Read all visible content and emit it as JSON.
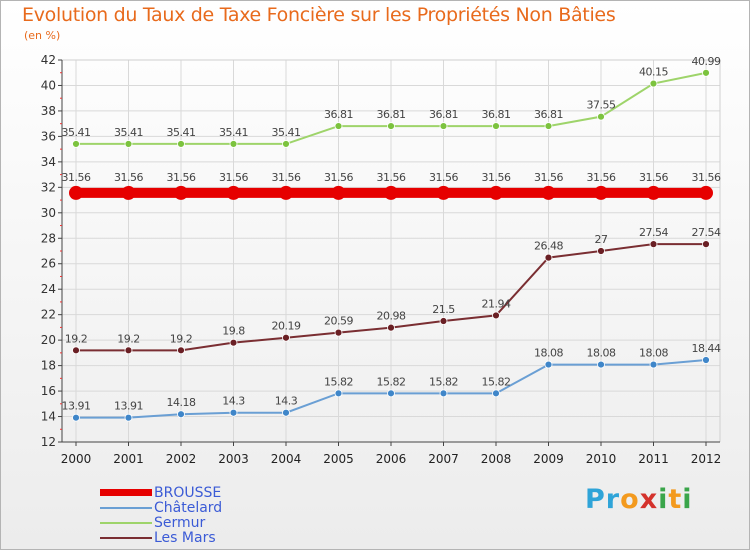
{
  "title": "Evolution du Taux de Taxe Foncière sur les Propriétés Non Bâties",
  "unit_label": "(en %)",
  "logo": {
    "letters": [
      "P",
      "r",
      "o",
      "x",
      "i",
      "t",
      "i"
    ],
    "colors": [
      "#2fa4d8",
      "#2fa4d8",
      "#f39a1e",
      "#d4322c",
      "#3aa54a",
      "#f39a1e",
      "#3aa54a"
    ]
  },
  "chart_data": {
    "type": "line",
    "x": [
      "2000",
      "2001",
      "2002",
      "2003",
      "2004",
      "2005",
      "2006",
      "2007",
      "2008",
      "2009",
      "2010",
      "2011",
      "2012"
    ],
    "ylim": [
      12,
      42
    ],
    "yticks": [
      12,
      14,
      16,
      18,
      20,
      22,
      24,
      26,
      28,
      30,
      32,
      34,
      36,
      38,
      40,
      42
    ],
    "grid": true,
    "legend_position": "bottom-left",
    "series": [
      {
        "name": "BROUSSE",
        "color": "#e60000",
        "emphasis": true,
        "values": [
          31.56,
          31.56,
          31.56,
          31.56,
          31.56,
          31.56,
          31.56,
          31.56,
          31.56,
          31.56,
          31.56,
          31.56,
          31.56
        ],
        "labels": [
          "31.56",
          "31.56",
          "31.56",
          "31.56",
          "31.56",
          "31.56",
          "31.56",
          "31.56",
          "31.56",
          "31.56",
          "31.56",
          "31.56",
          "31.56"
        ]
      },
      {
        "name": "Châtelard",
        "color": "#6a9fd4",
        "point": "#3f86c9",
        "values": [
          13.91,
          13.91,
          14.18,
          14.3,
          14.3,
          15.82,
          15.82,
          15.82,
          15.82,
          18.08,
          18.08,
          18.08,
          18.44
        ],
        "labels": [
          "13.91",
          "13.91",
          "14.18",
          "14.3",
          "14.3",
          "15.82",
          "15.82",
          "15.82",
          "15.82",
          "18.08",
          "18.08",
          "18.08",
          "18.44"
        ]
      },
      {
        "name": "Sermur",
        "color": "#9ed46a",
        "point": "#7cc33e",
        "values": [
          35.41,
          35.41,
          35.41,
          35.41,
          35.41,
          36.81,
          36.81,
          36.81,
          36.81,
          36.81,
          37.55,
          40.15,
          40.99
        ],
        "labels": [
          "35.41",
          "35.41",
          "35.41",
          "35.41",
          "35.41",
          "36.81",
          "36.81",
          "36.81",
          "36.81",
          "36.81",
          "37.55",
          "40.15",
          "40.99"
        ]
      },
      {
        "name": "Les Mars",
        "color": "#7a2e32",
        "point": "#6a1f24",
        "values": [
          19.2,
          19.2,
          19.2,
          19.8,
          20.19,
          20.59,
          20.98,
          21.5,
          21.94,
          26.48,
          27,
          27.54,
          27.54
        ],
        "labels": [
          "19.2",
          "19.2",
          "19.2",
          "19.8",
          "20.19",
          "20.59",
          "20.98",
          "21.5",
          "21.94",
          "26.48",
          "27",
          "27.54",
          "27.54"
        ]
      }
    ]
  }
}
